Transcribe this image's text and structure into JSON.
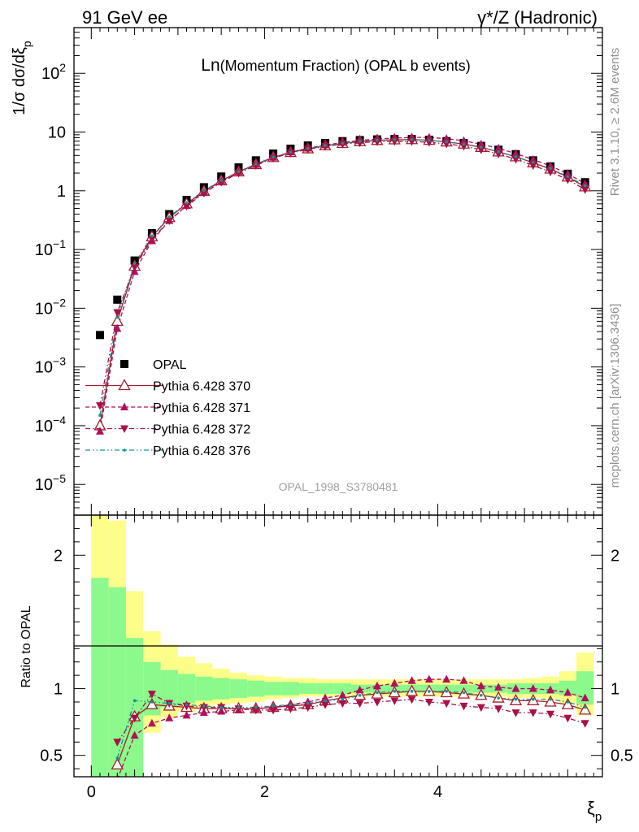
{
  "header": {
    "left": "91 GeV ee",
    "right": "γ*/Z (Hadronic)"
  },
  "plot_title": {
    "main": "Ln",
    "rest": "(Momentum Fraction) (OPAL b events)"
  },
  "side_labels": {
    "rivet": "Rivet 3.1.10, ≥ 2.6M events",
    "mcplots": "mcplots.cern.ch [arXiv:1306.3436]"
  },
  "analysis_id": "OPAL_1998_S3780481",
  "colors": {
    "opal": "#000000",
    "p370": "#a01e2c",
    "p371": "#b0105a",
    "p372": "#a81048",
    "p376": "#19908c",
    "band_green": "#8cf98c",
    "band_yellow": "#fdfd8a"
  },
  "chart_data": [
    {
      "type": "scatter",
      "ylabel": "1/σ dσ/dξp",
      "yscale": "log",
      "ylim": [
        3e-06,
        600
      ],
      "xlim": [
        -0.2,
        5.9
      ],
      "ytick_labels": [
        "10^-5",
        "10^-4",
        "10^-3",
        "10^-2",
        "10^-1",
        "1",
        "10",
        "10^2"
      ],
      "legend_position": "lower-left",
      "x": [
        0.1,
        0.3,
        0.5,
        0.7,
        0.9,
        1.1,
        1.3,
        1.5,
        1.7,
        1.9,
        2.1,
        2.3,
        2.5,
        2.7,
        2.9,
        3.1,
        3.3,
        3.5,
        3.7,
        3.9,
        4.1,
        4.3,
        4.5,
        4.7,
        4.9,
        5.1,
        5.3,
        5.5,
        5.7
      ],
      "series": [
        {
          "name": "OPAL",
          "marker": "square",
          "values": [
            0.0035,
            0.014,
            0.065,
            0.19,
            0.4,
            0.7,
            1.15,
            1.75,
            2.5,
            3.3,
            4.3,
            5.2,
            5.9,
            6.5,
            7.0,
            7.3,
            7.5,
            7.6,
            7.6,
            7.4,
            7.0,
            6.5,
            5.8,
            5.0,
            4.2,
            3.3,
            2.6,
            1.95,
            1.4
          ]
        },
        {
          "name": "Pythia 6.428 370",
          "marker": "open-triangle-up",
          "values": [
            0.0001,
            0.006,
            0.052,
            0.165,
            0.35,
            0.6,
            0.98,
            1.48,
            2.1,
            2.8,
            3.7,
            4.5,
            5.2,
            5.85,
            6.4,
            6.9,
            7.2,
            7.4,
            7.45,
            7.25,
            6.8,
            6.25,
            5.5,
            4.6,
            3.8,
            3.0,
            2.35,
            1.72,
            1.17
          ]
        },
        {
          "name": "Pythia 6.428 371",
          "marker": "triangle-up",
          "values": [
            8e-05,
            0.0045,
            0.042,
            0.14,
            0.31,
            0.56,
            0.96,
            1.47,
            2.1,
            2.8,
            3.7,
            4.55,
            5.3,
            6.0,
            6.65,
            7.2,
            7.6,
            7.9,
            8.1,
            8.1,
            7.7,
            7.1,
            6.2,
            5.3,
            4.3,
            3.4,
            2.65,
            1.95,
            1.32
          ]
        },
        {
          "name": "Pythia 6.428 372",
          "marker": "triangle-down",
          "values": [
            0.00022,
            0.0085,
            0.05,
            0.15,
            0.31,
            0.55,
            0.91,
            1.4,
            2.0,
            2.7,
            3.6,
            4.4,
            5.1,
            5.7,
            6.25,
            6.6,
            6.85,
            6.95,
            6.95,
            6.7,
            6.3,
            5.75,
            5.0,
            4.25,
            3.45,
            2.7,
            2.1,
            1.55,
            1.05
          ]
        },
        {
          "name": "Pythia 6.428 376",
          "marker": "dot",
          "values": [
            0.00015,
            0.007,
            0.058,
            0.17,
            0.36,
            0.62,
            1.0,
            1.5,
            2.12,
            2.85,
            3.75,
            4.55,
            5.25,
            5.9,
            6.45,
            6.95,
            7.25,
            7.45,
            7.45,
            7.25,
            6.8,
            6.2,
            5.5,
            4.6,
            3.8,
            3.05,
            2.4,
            1.75,
            1.22
          ]
        }
      ]
    },
    {
      "type": "line",
      "ylabel": "Ratio to OPAL",
      "xlabel": "ξp",
      "ylim": [
        0.34,
        2.3
      ],
      "xlim": [
        -0.2,
        5.9
      ],
      "ytick_labels": [
        "0.5",
        "1",
        "2"
      ],
      "xtick_labels": [
        "0",
        "2",
        "4"
      ],
      "reference_line": 1,
      "uncertainty_bands": {
        "x_edges": [
          0.0,
          0.2,
          0.4,
          0.6,
          0.8,
          1.0,
          1.2,
          1.4,
          1.6,
          1.8,
          2.0,
          2.2,
          2.4,
          2.6,
          2.8,
          3.0,
          3.2,
          3.4,
          3.6,
          3.8,
          4.0,
          4.2,
          4.4,
          4.6,
          4.8,
          5.0,
          5.2,
          5.4,
          5.6,
          5.8
        ],
        "green_low": [
          0.3,
          0.3,
          0.3,
          0.8,
          0.86,
          0.89,
          0.91,
          0.92,
          0.93,
          0.94,
          0.95,
          0.95,
          0.96,
          0.96,
          0.96,
          0.97,
          0.97,
          0.97,
          0.97,
          0.97,
          0.97,
          0.97,
          0.97,
          0.97,
          0.96,
          0.96,
          0.96,
          0.95,
          0.88
        ],
        "green_high": [
          1.83,
          1.76,
          1.38,
          1.2,
          1.14,
          1.11,
          1.09,
          1.08,
          1.07,
          1.06,
          1.05,
          1.05,
          1.04,
          1.04,
          1.04,
          1.03,
          1.03,
          1.03,
          1.03,
          1.03,
          1.03,
          1.03,
          1.03,
          1.03,
          1.04,
          1.04,
          1.04,
          1.06,
          1.13
        ],
        "yellow_low": [
          0.3,
          0.3,
          0.3,
          0.67,
          0.78,
          0.83,
          0.86,
          0.88,
          0.89,
          0.9,
          0.92,
          0.93,
          0.94,
          0.94,
          0.94,
          0.94,
          0.94,
          0.94,
          0.94,
          0.94,
          0.94,
          0.94,
          0.94,
          0.94,
          0.93,
          0.93,
          0.92,
          0.89,
          0.8
        ],
        "yellow_high": [
          2.3,
          2.26,
          1.73,
          1.43,
          1.33,
          1.24,
          1.19,
          1.15,
          1.12,
          1.1,
          1.09,
          1.08,
          1.08,
          1.07,
          1.07,
          1.07,
          1.07,
          1.07,
          1.07,
          1.07,
          1.07,
          1.07,
          1.07,
          1.07,
          1.07,
          1.08,
          1.09,
          1.13,
          1.27
        ]
      },
      "x": [
        0.1,
        0.3,
        0.5,
        0.7,
        0.9,
        1.1,
        1.3,
        1.5,
        1.7,
        1.9,
        2.1,
        2.3,
        2.5,
        2.7,
        2.9,
        3.1,
        3.3,
        3.5,
        3.7,
        3.9,
        4.1,
        4.3,
        4.5,
        4.7,
        4.9,
        5.1,
        5.3,
        5.5,
        5.7
      ],
      "series": [
        {
          "name": "Pythia 6.428 370",
          "marker": "open-triangle-up",
          "values": [
            null,
            0.43,
            0.79,
            0.88,
            0.87,
            0.86,
            0.85,
            0.85,
            0.85,
            0.85,
            0.86,
            0.87,
            0.88,
            0.91,
            0.93,
            0.95,
            0.96,
            0.97,
            0.98,
            0.98,
            0.97,
            0.96,
            0.95,
            0.93,
            0.91,
            0.91,
            0.9,
            0.88,
            0.84
          ]
        },
        {
          "name": "Pythia 6.428 371",
          "marker": "triangle-up",
          "values": [
            null,
            0.32,
            0.65,
            0.74,
            0.78,
            0.8,
            0.82,
            0.83,
            0.84,
            0.85,
            0.86,
            0.88,
            0.9,
            0.93,
            0.95,
            0.99,
            1.02,
            1.04,
            1.06,
            1.07,
            1.07,
            1.06,
            1.02,
            1.01,
            1.0,
            1.0,
            0.99,
            0.97,
            0.93
          ]
        },
        {
          "name": "Pythia 6.428 372",
          "marker": "triangle-down",
          "values": [
            null,
            0.6,
            0.78,
            0.96,
            0.89,
            0.87,
            0.86,
            0.86,
            0.85,
            0.84,
            0.84,
            0.85,
            0.86,
            0.88,
            0.89,
            0.89,
            0.9,
            0.91,
            0.92,
            0.9,
            0.89,
            0.87,
            0.86,
            0.85,
            0.82,
            0.82,
            0.81,
            0.78,
            0.74
          ]
        },
        {
          "name": "Pythia 6.428 376",
          "marker": "dot",
          "values": [
            null,
            0.48,
            0.91,
            0.9,
            0.89,
            0.88,
            0.87,
            0.86,
            0.86,
            0.86,
            0.87,
            0.88,
            0.89,
            0.91,
            0.92,
            0.95,
            0.97,
            0.98,
            0.98,
            0.98,
            0.98,
            0.97,
            0.95,
            0.93,
            0.92,
            0.92,
            0.92,
            0.9,
            0.86
          ]
        }
      ]
    }
  ]
}
